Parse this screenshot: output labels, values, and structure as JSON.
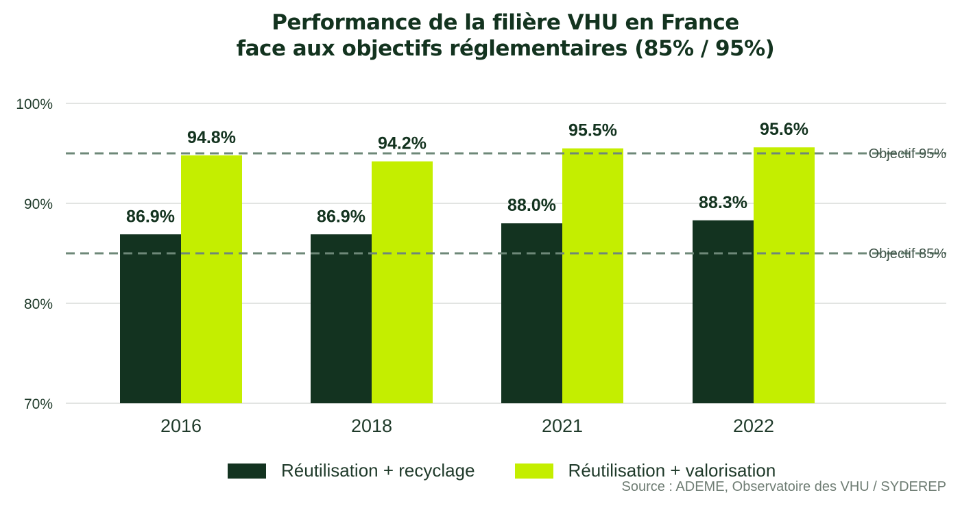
{
  "title": {
    "line1": "Performance de la filière VHU en France",
    "line2": "face aux objectifs réglementaires (85% / 95%)"
  },
  "source": "Source : ADEME, Observatoire des VHU / SYDEREP",
  "colors": {
    "recyclage": "#133320",
    "valorisation": "#c4ee00",
    "target": "#6e8878",
    "grid": "#d9dcd9",
    "text": "#1f3a2a"
  },
  "chart_data": {
    "type": "bar",
    "title": "Performance de la filière VHU en France face aux objectifs réglementaires (85% / 95%)",
    "categories": [
      "2016",
      "2018",
      "2021",
      "2022"
    ],
    "series": [
      {
        "name": "Réutilisation + recyclage",
        "values": [
          86.9,
          86.9,
          88.0,
          88.3
        ],
        "labels": [
          "86.9%",
          "86.9%",
          "88.0%",
          "88.3%"
        ]
      },
      {
        "name": "Réutilisation + valorisation",
        "values": [
          94.8,
          94.2,
          95.5,
          95.6
        ],
        "labels": [
          "94.8%",
          "94.2%",
          "95.5%",
          "95.6%"
        ]
      }
    ],
    "ylim": [
      70,
      100
    ],
    "yticks": [
      70,
      80,
      90,
      100
    ],
    "ytick_labels": [
      "70%",
      "80%",
      "90%",
      "100%"
    ],
    "reference_lines": [
      {
        "value": 95,
        "label": "Objectif 95%"
      },
      {
        "value": 85,
        "label": "Objectif 85%"
      }
    ],
    "grid": true,
    "legend": "bottom",
    "xlabel": "",
    "ylabel": ""
  }
}
